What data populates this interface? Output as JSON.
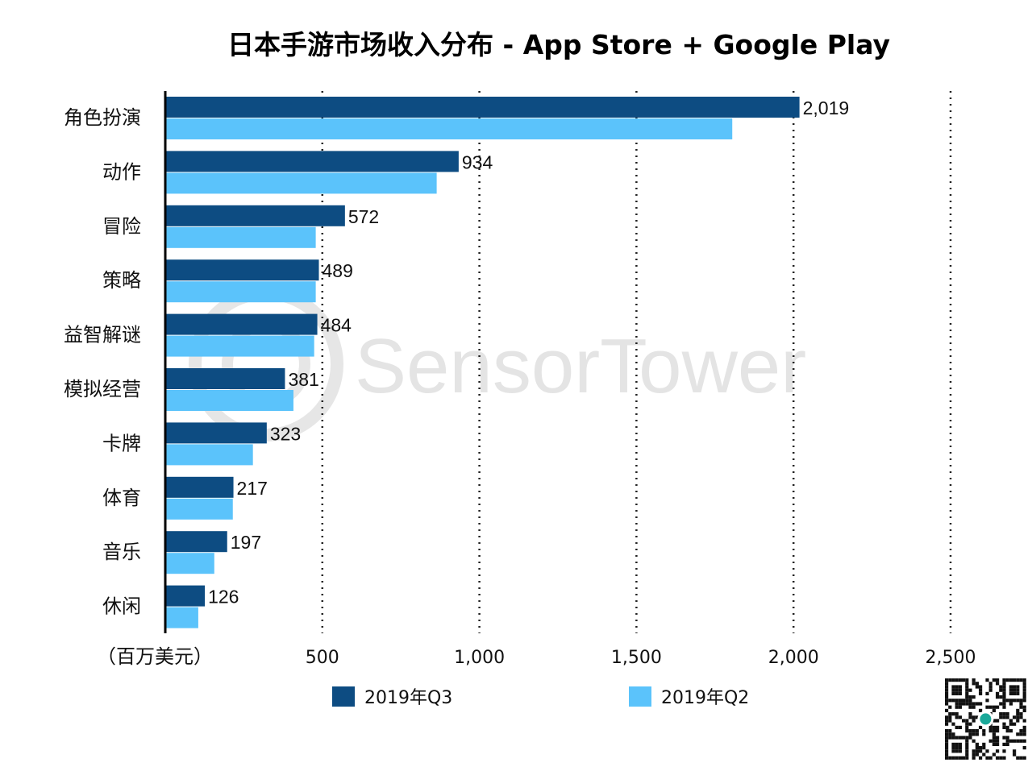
{
  "chart_data": {
    "type": "bar",
    "orientation": "horizontal",
    "title": "日本手游市场收入分布 - App Store + Google Play",
    "xlabel": "（百万美元）",
    "ylabel": "",
    "xlim": [
      0,
      2500
    ],
    "xticks": [
      "500",
      "1,000",
      "1,500",
      "2,000",
      "2,500"
    ],
    "xtick_values": [
      500,
      1000,
      1500,
      2000,
      2500
    ],
    "grid": "vertical dotted",
    "categories": [
      "角色扮演",
      "动作",
      "冒险",
      "策略",
      "益智解谜",
      "模拟经营",
      "卡牌",
      "体育",
      "音乐",
      "休闲"
    ],
    "series": [
      {
        "name": "2019年Q3",
        "color": "#0d4c82",
        "values": [
          2019,
          934,
          572,
          489,
          484,
          381,
          323,
          217,
          197,
          126
        ],
        "labels": [
          "2,019",
          "934",
          "572",
          "489",
          "484",
          "381",
          "323",
          "217",
          "197",
          "126"
        ]
      },
      {
        "name": "2019年Q2",
        "color": "#5bc3fb",
        "values": [
          1805,
          864,
          479,
          479,
          474,
          408,
          279,
          215,
          156,
          105
        ]
      }
    ],
    "legend": "bottom",
    "watermark": "SensorTower"
  }
}
